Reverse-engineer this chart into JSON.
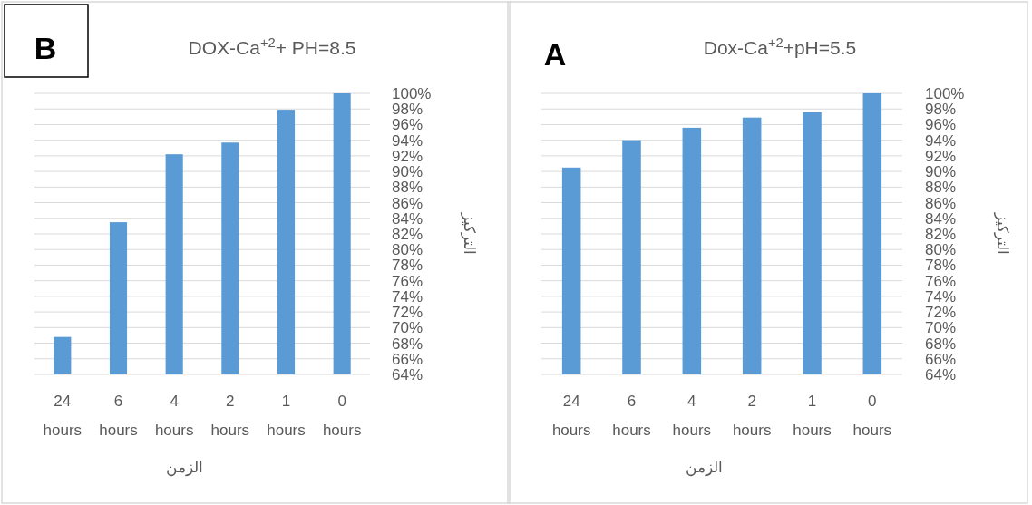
{
  "chart_data": [
    {
      "type": "bar",
      "title": "DOX-Ca$^{+2}$+ PH=8.5",
      "annotations": [
        "B"
      ],
      "xlabel": "الزمن",
      "ylabel": "التركيز",
      "categories": [
        "24 hours",
        "6 hours",
        "4 hours",
        "2 hours",
        "1 hours",
        "0 hours"
      ],
      "values": [
        68.8,
        83.5,
        92.2,
        93.7,
        97.9,
        100
      ],
      "color": "#5b9bd5",
      "ylim": [
        64,
        100
      ],
      "yticks": [
        {
          "value": 64,
          "label": "64%"
        },
        {
          "value": 66,
          "label": "66%"
        },
        {
          "value": 68,
          "label": "68%"
        },
        {
          "value": 70,
          "label": "70%"
        },
        {
          "value": 72,
          "label": "72%"
        },
        {
          "value": 74,
          "label": "74%"
        },
        {
          "value": 76,
          "label": "76%"
        },
        {
          "value": 78,
          "label": "78%"
        },
        {
          "value": 80,
          "label": "80%"
        },
        {
          "value": 82,
          "label": "82%"
        },
        {
          "value": 84,
          "label": "84%"
        },
        {
          "value": 86,
          "label": "86%"
        },
        {
          "value": 88,
          "label": "88%"
        },
        {
          "value": 90,
          "label": "90%"
        },
        {
          "value": 92,
          "label": "92%"
        },
        {
          "value": 94,
          "label": "94%"
        },
        {
          "value": 96,
          "label": "96%"
        },
        {
          "value": 98,
          "label": "98%"
        },
        {
          "value": 100,
          "label": "100%"
        }
      ],
      "grid": "y"
    },
    {
      "type": "bar",
      "title": "Dox-Ca$^{+2}$+pH=5.5",
      "annotations": [
        "A"
      ],
      "xlabel": "الزمن",
      "ylabel": "التركيز",
      "categories": [
        "24 hours",
        "6 hours",
        "4 hours",
        "2 hours",
        "1 hours",
        "0 hours"
      ],
      "values": [
        90.5,
        94.0,
        95.6,
        96.9,
        97.6,
        100
      ],
      "color": "#5b9bd5",
      "ylim": [
        64,
        100
      ],
      "yticks": [
        {
          "value": 64,
          "label": "64%"
        },
        {
          "value": 66,
          "label": "66%"
        },
        {
          "value": 68,
          "label": "68%"
        },
        {
          "value": 70,
          "label": "70%"
        },
        {
          "value": 72,
          "label": "72%"
        },
        {
          "value": 74,
          "label": "74%"
        },
        {
          "value": 76,
          "label": "76%"
        },
        {
          "value": 78,
          "label": "78%"
        },
        {
          "value": 80,
          "label": "80%"
        },
        {
          "value": 82,
          "label": "82%"
        },
        {
          "value": 84,
          "label": "84%"
        },
        {
          "value": 86,
          "label": "86%"
        },
        {
          "value": 88,
          "label": "88%"
        },
        {
          "value": 90,
          "label": "90%"
        },
        {
          "value": 92,
          "label": "92%"
        },
        {
          "value": 94,
          "label": "94%"
        },
        {
          "value": 96,
          "label": "96%"
        },
        {
          "value": 98,
          "label": "98%"
        },
        {
          "value": 100,
          "label": "100%"
        }
      ],
      "grid": "y"
    }
  ]
}
